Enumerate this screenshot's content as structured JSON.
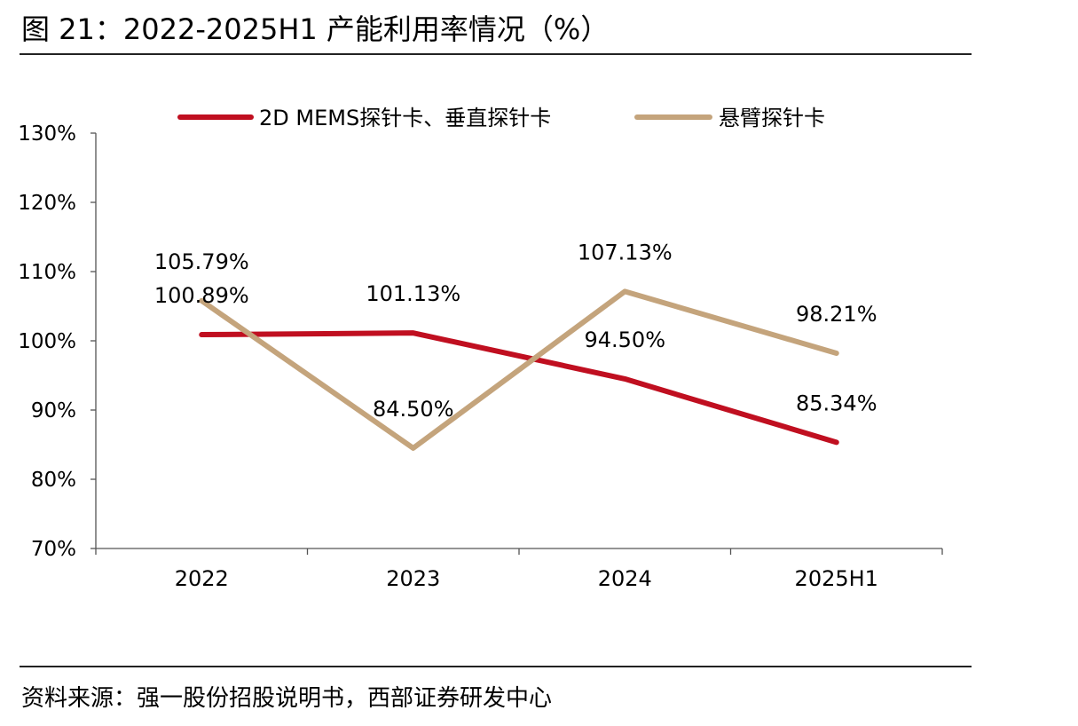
{
  "figure": {
    "title": "图 21：2022-2025H1 产能利用率情况（%）",
    "source": "资料来源：强一股份招股说明书，西部证券研发中心"
  },
  "chart_data": {
    "type": "line",
    "categories": [
      "2022",
      "2023",
      "2024",
      "2025H1"
    ],
    "ylim": [
      70,
      130
    ],
    "yticks": [
      70,
      80,
      90,
      100,
      110,
      120,
      130
    ],
    "ytick_labels": [
      "70%",
      "80%",
      "90%",
      "100%",
      "110%",
      "120%",
      "130%"
    ],
    "grid": false,
    "legend_position": "top",
    "series": [
      {
        "name": "2D MEMS探针卡、垂直探针卡",
        "color": "#C00F20",
        "values": [
          100.89,
          101.13,
          94.5,
          85.34
        ],
        "labels": [
          "100.89%",
          "101.13%",
          "94.50%",
          "85.34%"
        ]
      },
      {
        "name": "悬臂探针卡",
        "color": "#C4A47C",
        "values": [
          105.79,
          84.5,
          107.13,
          98.21
        ],
        "labels": [
          "105.79%",
          "84.50%",
          "107.13%",
          "98.21%"
        ]
      }
    ]
  }
}
